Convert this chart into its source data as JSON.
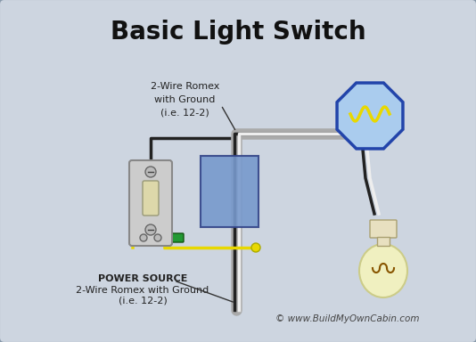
{
  "title": "Basic Light Switch",
  "bg_color": "#cdd5e0",
  "title_fontsize": 20,
  "title_color": "#111111",
  "wire_gray_color": "#aaaaaa",
  "wire_black_color": "#222222",
  "wire_white_color": "#eeeeee",
  "wire_yellow_color": "#e8d800",
  "wire_green_color": "#229922",
  "switch_box_color": "#7799cc",
  "switch_box_edge": "#334488",
  "switch_body_color": "#cccccc",
  "switch_body_edge": "#888888",
  "switch_toggle_color": "#ddd8aa",
  "lightbulb_color": "#f0f0c0",
  "lightbulb_base_color": "#e8e0c0",
  "ceiling_box_fill": "#aaccee",
  "ceiling_box_edge": "#2244aa",
  "watermark": "© www.BuildMyOwnCabin.com",
  "label_top": "2-Wire Romex\nwith Ground\n(i.e. 12-2)",
  "label_bottom_line1": "POWER SOURCE",
  "label_bottom_line2": "2-Wire Romex with Ground",
  "label_bottom_line3": "(i.e. 12-2)",
  "border_color": "#8899aa"
}
